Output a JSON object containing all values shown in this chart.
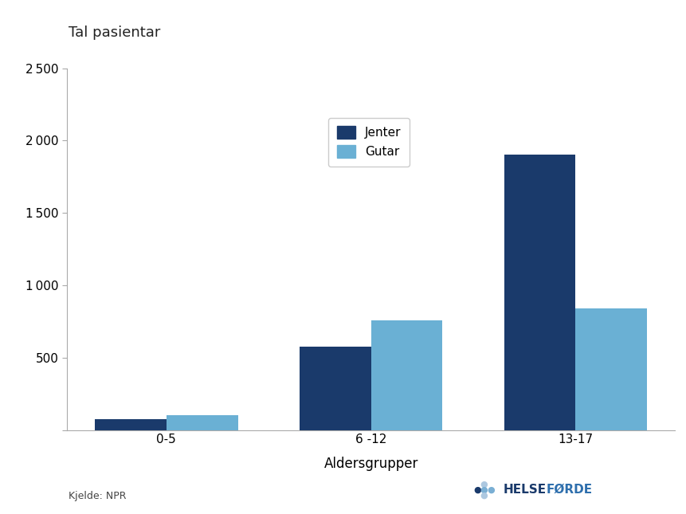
{
  "categories": [
    "0-5",
    "6 -12",
    "13-17"
  ],
  "jenter": [
    75,
    575,
    1900
  ],
  "gutar": [
    100,
    760,
    840
  ],
  "color_jenter": "#1a3a6b",
  "color_gutar": "#6ab0d4",
  "ylabel": "Tal pasientar",
  "xlabel": "Aldersgrupper",
  "ylim": [
    0,
    2500
  ],
  "yticks": [
    0,
    500,
    1000,
    1500,
    2000,
    2500
  ],
  "ytick_labels": [
    "",
    "500",
    "1 000",
    "1 500",
    "2 000",
    "2 500"
  ],
  "legend_labels": [
    "Jenter",
    "Gutar"
  ],
  "source_text": "Kjelde: NPR",
  "background_color": "#ffffff",
  "bar_width": 0.35,
  "dot_dark": "#1a3a6b",
  "dot_mid": "#7aafd4",
  "dot_light": "#adc8e0",
  "helse_color": "#1a3a6b",
  "forde_color": "#2e6fad"
}
